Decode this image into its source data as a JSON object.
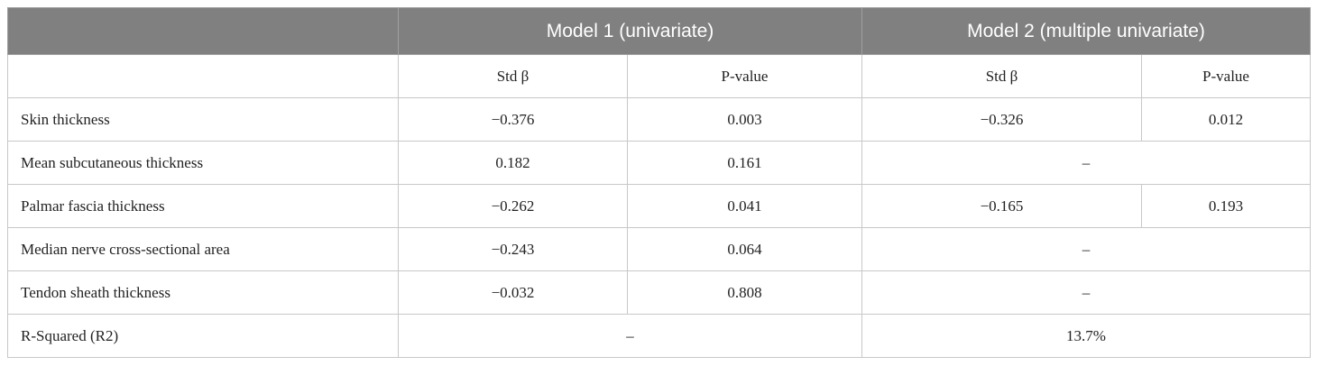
{
  "table": {
    "header": [
      "Model 1 (univariate)",
      "Model 2 (multiple univariate)"
    ],
    "subheader": [
      "Std β",
      "P-value",
      "Std β",
      "P-value"
    ],
    "rows": [
      {
        "label": "Skin thickness",
        "cells": [
          "−0.376",
          "0.003",
          "−0.326",
          "0.012"
        ]
      },
      {
        "label": "Mean subcutaneous thickness",
        "cells": [
          "0.182",
          "0.161",
          "–"
        ]
      },
      {
        "label": "Palmar fascia thickness",
        "cells": [
          "−0.262",
          "0.041",
          "−0.165",
          "0.193"
        ]
      },
      {
        "label": "Median nerve cross-sectional area",
        "cells": [
          "−0.243",
          "0.064",
          "–"
        ]
      },
      {
        "label": "Tendon sheath thickness",
        "cells": [
          "−0.032",
          "0.808",
          "–"
        ]
      },
      {
        "label": "R-Squared (R2)",
        "cells": [
          "–",
          "13.7%"
        ]
      }
    ]
  }
}
